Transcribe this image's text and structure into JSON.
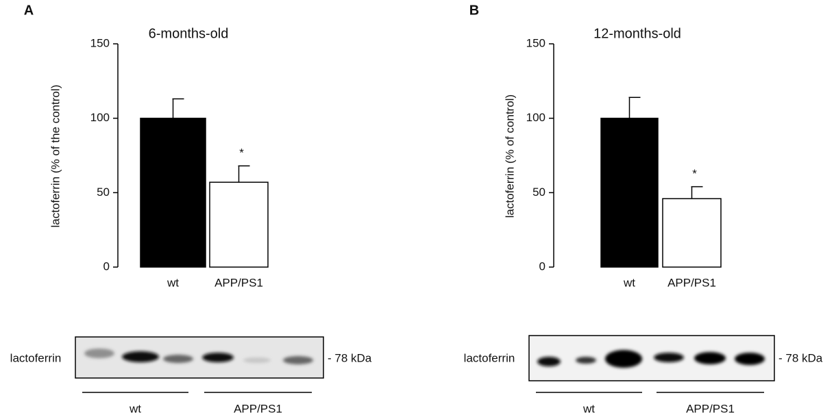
{
  "chart_data": [
    {
      "type": "bar",
      "panel_label": "A",
      "title": "6-months-old",
      "ylabel": "lactoferrin (% of the control)",
      "categories": [
        "wt",
        "APP/PS1"
      ],
      "values": [
        100,
        57
      ],
      "errors": [
        13,
        11
      ],
      "colors": [
        "#000000",
        "#ffffff"
      ],
      "significance": [
        null,
        "*"
      ],
      "ylim": [
        0,
        150
      ],
      "yticks": [
        0,
        50,
        100,
        150
      ],
      "blot": {
        "label": "lactoferrin",
        "marker": "- 78 kDa",
        "groups": [
          "wt",
          "APP/PS1"
        ]
      }
    },
    {
      "type": "bar",
      "panel_label": "B",
      "title": "12-months-old",
      "ylabel": "lactoferrin (% of control)",
      "categories": [
        "wt",
        "APP/PS1"
      ],
      "values": [
        100,
        46
      ],
      "errors": [
        14,
        8
      ],
      "colors": [
        "#000000",
        "#ffffff"
      ],
      "significance": [
        null,
        "*"
      ],
      "ylim": [
        0,
        150
      ],
      "yticks": [
        0,
        50,
        100,
        150
      ],
      "blot": {
        "label": "lactoferrin",
        "marker": "- 78 kDa",
        "groups": [
          "wt",
          "APP/PS1"
        ]
      }
    }
  ]
}
